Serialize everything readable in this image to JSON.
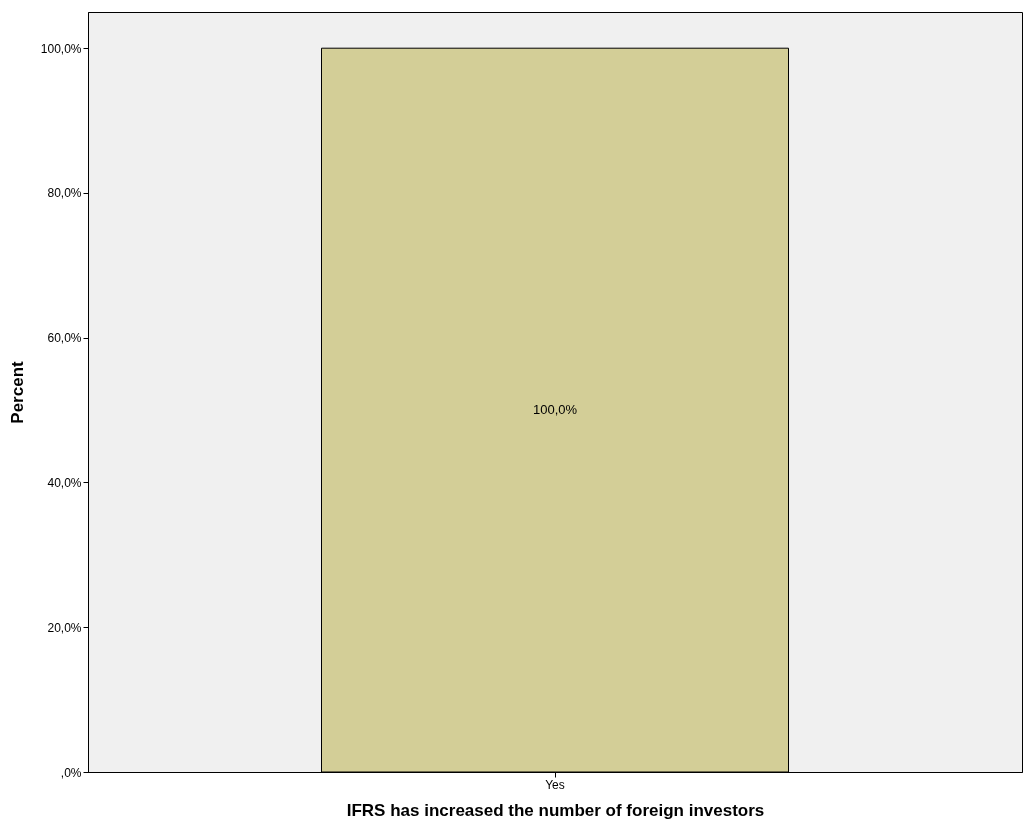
{
  "chart_data": {
    "type": "bar",
    "xlabel": "IFRS has increased the number of foreign investors",
    "ylabel": "Percent",
    "categories": [
      "Yes"
    ],
    "values": [
      100
    ],
    "value_labels": [
      "100,0%"
    ],
    "color": "#d3ce97",
    "ylim": [
      0,
      105
    ],
    "yticks": [
      {
        "value": 0,
        "label": ",0%"
      },
      {
        "value": 20,
        "label": "20,0%"
      },
      {
        "value": 40,
        "label": "40,0%"
      },
      {
        "value": 60,
        "label": "60,0%"
      },
      {
        "value": 80,
        "label": "80,0%"
      },
      {
        "value": 100,
        "label": "100,0%"
      }
    ],
    "grid": false
  }
}
